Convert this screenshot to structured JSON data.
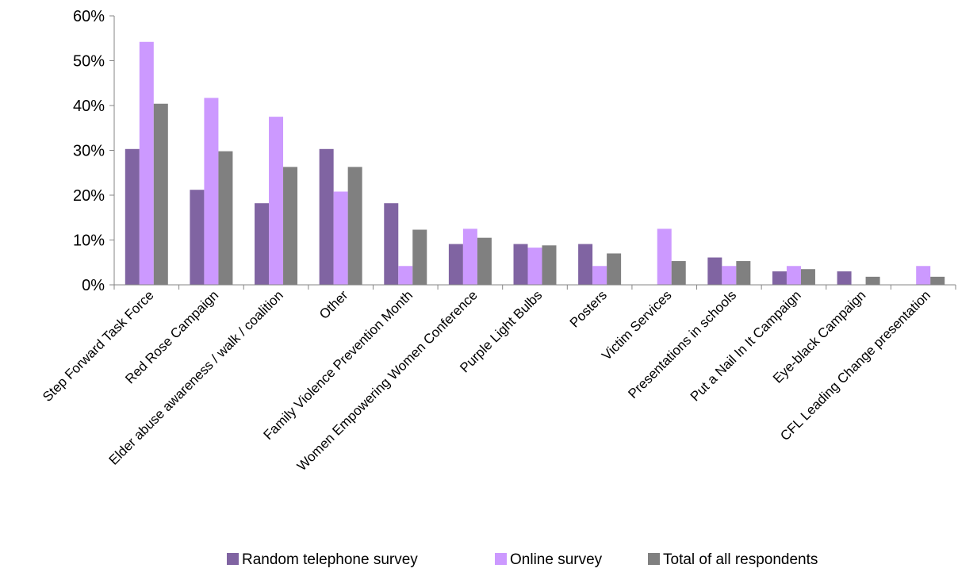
{
  "chart_data": {
    "type": "bar",
    "title": "",
    "xlabel": "",
    "ylabel": "",
    "ylim": [
      0,
      60
    ],
    "ytick_step": 10,
    "ytick_suffix": "%",
    "grid": false,
    "legend_position": "bottom",
    "categories": [
      "Step Forward Task Force",
      "Red Rose Campaign",
      "Elder abuse awareness / walk / coalition",
      "Other",
      "Family Violence Prevention Month",
      "Women Empowering Women Conference",
      "Purple Light Bulbs",
      "Posters",
      "Victim Services",
      "Presentations in schools",
      "Put a Nail In It Campaign",
      "Eye-black Campaign",
      "CFL Leading Change presentation"
    ],
    "series": [
      {
        "name": "Random telephone survey",
        "color": "#8064a2",
        "values": [
          30.3,
          21.2,
          18.2,
          30.3,
          18.2,
          9.1,
          9.1,
          9.1,
          0,
          6.1,
          3.0,
          3.0,
          0
        ]
      },
      {
        "name": "Online survey",
        "color": "#cc99ff",
        "values": [
          54.2,
          41.7,
          37.5,
          20.8,
          4.2,
          12.5,
          8.3,
          4.2,
          12.5,
          4.2,
          4.2,
          0,
          4.2
        ]
      },
      {
        "name": "Total of all respondents",
        "color": "#808080",
        "values": [
          40.4,
          29.8,
          26.3,
          26.3,
          12.3,
          10.5,
          8.8,
          7.0,
          5.3,
          5.3,
          3.5,
          1.8,
          1.8
        ]
      }
    ]
  }
}
